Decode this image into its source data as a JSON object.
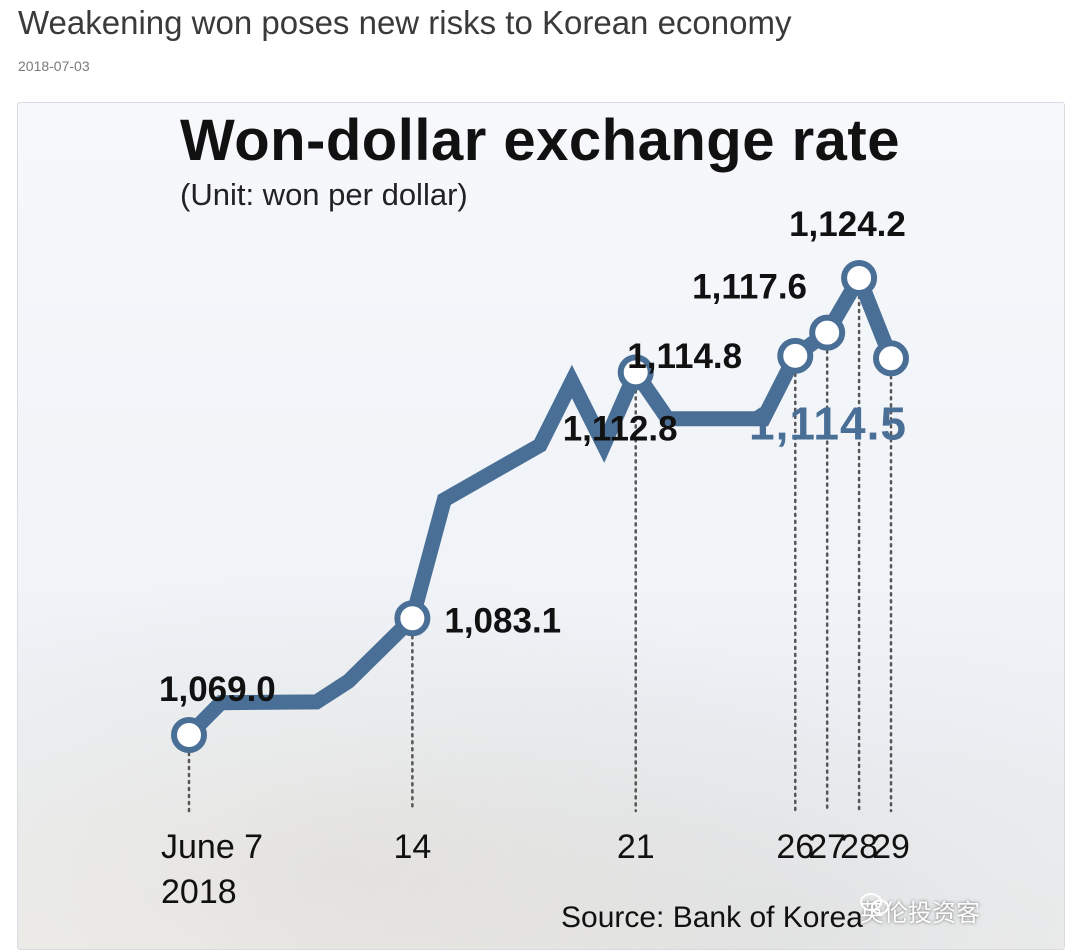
{
  "article": {
    "headline": "Weakening won poses new risks to Korean economy",
    "date": "2018-07-03"
  },
  "colors": {
    "line": "#4a6f96",
    "highlight_label": "#4a6f96",
    "label": "#111111",
    "dotted": "#555555"
  },
  "chart_data": {
    "type": "line",
    "title": "Won-dollar exchange rate",
    "subtitle": "(Unit: won per dollar)",
    "source": "Source: Bank of Korea",
    "series": [
      {
        "x": [
          "2018-06-07",
          "2018-06-08",
          "2018-06-11",
          "2018-06-12",
          "2018-06-14",
          "2018-06-15",
          "2018-06-18",
          "2018-06-19",
          "2018-06-20",
          "2018-06-21",
          "2018-06-22",
          "2018-06-25",
          "2018-06-26",
          "2018-06-27",
          "2018-06-28",
          "2018-06-29"
        ],
        "values": [
          1069.0,
          1072.9,
          1073.0,
          1075.5,
          1083.1,
          1097.4,
          1104.0,
          1111.7,
          1104.0,
          1112.8,
          1107.2,
          1107.2,
          1114.8,
          1117.6,
          1124.2,
          1114.5
        ]
      }
    ],
    "ylim": [
      1060,
      1130
    ],
    "labeled_points": [
      {
        "x": "2018-06-07",
        "label": "1,069.0"
      },
      {
        "x": "2018-06-14",
        "label": "1,083.1"
      },
      {
        "x": "2018-06-21",
        "label": "1,112.8"
      },
      {
        "x": "2018-06-26",
        "label": "1,114.8"
      },
      {
        "x": "2018-06-27",
        "label": "1,117.6"
      },
      {
        "x": "2018-06-28",
        "label": "1,124.2"
      },
      {
        "x": "2018-06-29",
        "label": "1,114.5",
        "highlight": true
      }
    ],
    "tick_labels": [
      {
        "x": "2018-06-07",
        "label": "June 7",
        "sublabel": "2018"
      },
      {
        "x": "2018-06-14",
        "label": "14"
      },
      {
        "x": "2018-06-21",
        "label": "21"
      },
      {
        "x": "2018-06-26",
        "label": "26"
      },
      {
        "x": "2018-06-27",
        "label": "27"
      },
      {
        "x": "2018-06-28",
        "label": "28"
      },
      {
        "x": "2018-06-29",
        "label": "29"
      }
    ],
    "grid": false,
    "legend": "none"
  },
  "watermark": "英伦投资客"
}
